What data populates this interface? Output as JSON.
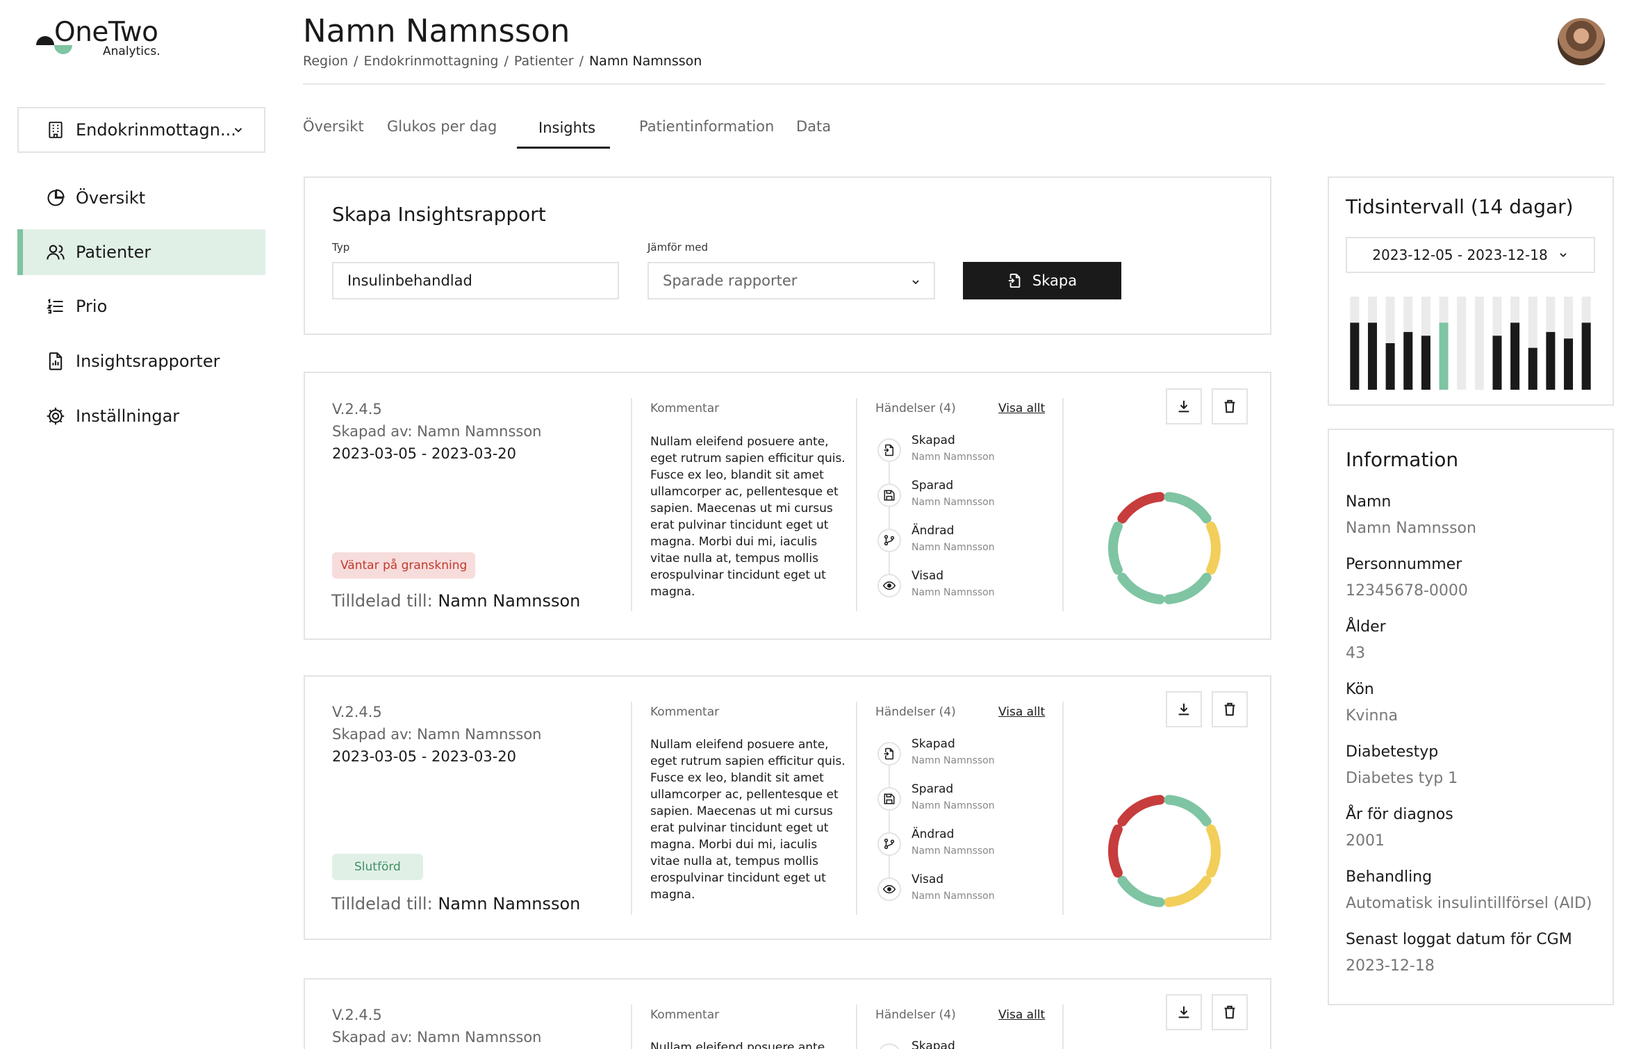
{
  "logo": {
    "title": "OneTwo",
    "subtitle": "Analytics."
  },
  "sidebar": {
    "clinic": "Endokrinmottagn...",
    "items": [
      {
        "label": "Översikt",
        "icon": "pie-chart-icon"
      },
      {
        "label": "Patienter",
        "icon": "users-icon"
      },
      {
        "label": "Prio",
        "icon": "list-icon"
      },
      {
        "label": "Insightsrapporter",
        "icon": "report-icon"
      },
      {
        "label": "Inställningar",
        "icon": "gear-icon"
      }
    ]
  },
  "header": {
    "title": "Namn Namnsson",
    "breadcrumb": [
      "Region",
      "Endokrinmottagning",
      "Patienter",
      "Namn Namnsson"
    ],
    "separator": "/"
  },
  "tabs": [
    "Översikt",
    "Glukos per dag",
    "Insights",
    "Patientinformation",
    "Data"
  ],
  "create": {
    "title": "Skapa Insightsrapport",
    "type_label": "Typ",
    "type_value": "Insulinbehandlad",
    "compare_label": "Jämför med",
    "compare_placeholder": "Sparade rapporter",
    "button": "Skapa"
  },
  "reports": [
    {
      "version": "V.2.4.5",
      "created_by": "Skapad av: Namn Namnsson",
      "dates": "2023-03-05 - 2023-03-20",
      "status": "Väntar på granskning",
      "assigned_label": "Tilldelad till:",
      "assigned_to": "Namn Namnsson",
      "comment_label": "Kommentar",
      "comment": "Nullam eleifend posuere ante, eget rutrum sapien efficitur quis. Fusce ex leo, blandit sit amet ullamcorper ac, pellentesque et sapien. Maecenas ut mi cursus erat pulvinar tincidunt eget ut magna. Morbi dui mi, iaculis vitae nulla at, tempus mollis erospulvinar tincidunt eget ut magna.",
      "events_label": "Händelser (4)",
      "show_all": "Visa allt",
      "events": [
        {
          "title": "Skapad",
          "by": "Namn Namnsson",
          "icon": "create-icon"
        },
        {
          "title": "Sparad",
          "by": "Namn Namnsson",
          "icon": "save-icon"
        },
        {
          "title": "Ändrad",
          "by": "Namn Namnsson",
          "icon": "edit-branch-icon"
        },
        {
          "title": "Visad",
          "by": "Namn Namnsson",
          "icon": "eye-icon"
        }
      ],
      "ring_colors": [
        "#c73c3c",
        "#7fc4a3",
        "#f2cf5b",
        "#7fc4a3",
        "#7fc4a3",
        "#7fc4a3"
      ]
    },
    {
      "version": "V.2.4.5",
      "created_by": "Skapad av: Namn Namnsson",
      "dates": "2023-03-05 - 2023-03-20",
      "status": "Slutförd",
      "assigned_label": "Tilldelad till:",
      "assigned_to": "Namn Namnsson",
      "comment_label": "Kommentar",
      "comment": "Nullam eleifend posuere ante, eget rutrum sapien efficitur quis. Fusce ex leo, blandit sit amet ullamcorper ac, pellentesque et sapien. Maecenas ut mi cursus erat pulvinar tincidunt eget ut magna. Morbi dui mi, iaculis vitae nulla at, tempus mollis erospulvinar tincidunt eget ut magna.",
      "events_label": "Händelser (4)",
      "show_all": "Visa allt",
      "events": [
        {
          "title": "Skapad",
          "by": "Namn Namnsson",
          "icon": "create-icon"
        },
        {
          "title": "Sparad",
          "by": "Namn Namnsson",
          "icon": "save-icon"
        },
        {
          "title": "Ändrad",
          "by": "Namn Namnsson",
          "icon": "edit-branch-icon"
        },
        {
          "title": "Visad",
          "by": "Namn Namnsson",
          "icon": "eye-icon"
        }
      ],
      "ring_colors": [
        "#c73c3c",
        "#7fc4a3",
        "#f2cf5b",
        "#f2cf5b",
        "#7fc4a3",
        "#c73c3c"
      ]
    },
    {
      "version": "V.2.4.5",
      "created_by": "Skapad av: Namn Namnsson",
      "comment_label": "Kommentar",
      "comment_start": "Nullam eleifend posuere ante,",
      "events_label": "Händelser (4)",
      "show_all": "Visa allt",
      "first_event": "Skapad"
    }
  ],
  "interval": {
    "title": "Tidsintervall (14 dagar)",
    "range": "2023-12-05 - 2023-12-18",
    "bars": [
      0.72,
      0.72,
      0.5,
      0.62,
      0.58,
      0.72,
      0,
      0,
      0.58,
      0.72,
      0.45,
      0.62,
      0.55,
      0.72
    ],
    "highlight_index": 5,
    "bar_color": "#1a1a1a",
    "highlight_color": "#7fc4a3"
  },
  "info": {
    "title": "Information",
    "fields": [
      {
        "label": "Namn",
        "value": "Namn Namnsson"
      },
      {
        "label": "Personnummer",
        "value": "12345678-0000"
      },
      {
        "label": "Ålder",
        "value": "43"
      },
      {
        "label": "Kön",
        "value": "Kvinna"
      },
      {
        "label": "Diabetestyp",
        "value": "Diabetes typ 1"
      },
      {
        "label": "År för diagnos",
        "value": "2001"
      },
      {
        "label": "Behandling",
        "value": "Automatisk insulintillförsel (AID)"
      },
      {
        "label": "Senast loggat datum för CGM",
        "value": "2023-12-18"
      }
    ]
  },
  "colors": {
    "accent": "#7fc4a3",
    "danger": "#c73c3c",
    "warning": "#f2cf5b"
  }
}
